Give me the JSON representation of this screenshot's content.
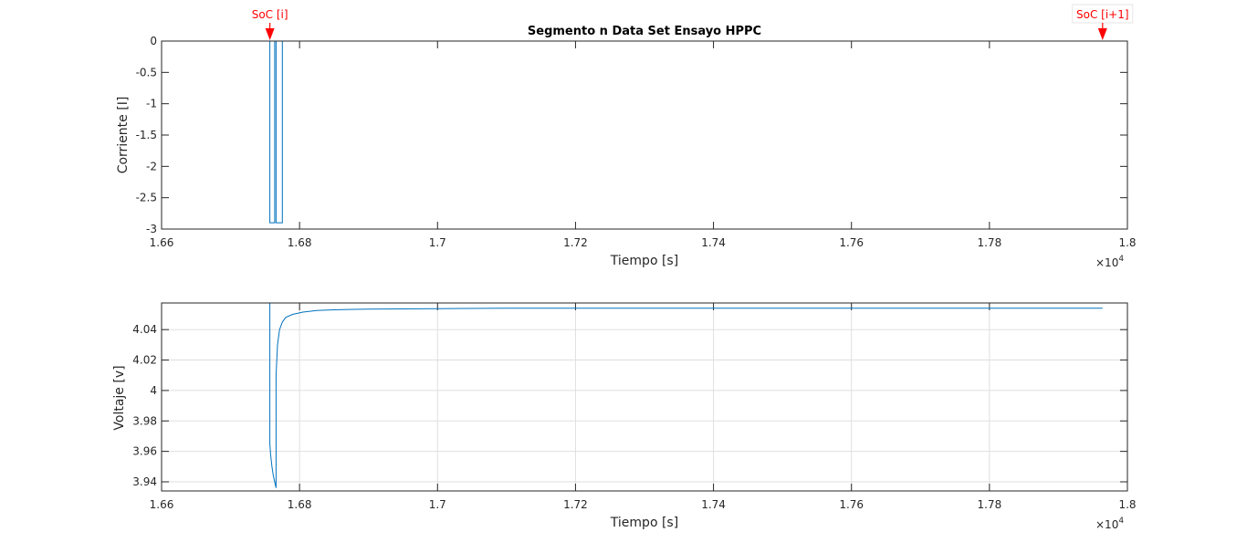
{
  "chart_data": [
    {
      "type": "line",
      "title": "Segmento n Data Set Ensayo HPPC",
      "xlabel": "Tiempo [s]",
      "ylabel": "Corriente [I]",
      "x_multiplier_label": "×10",
      "x_multiplier_exp": "4",
      "xlim": [
        1.66,
        1.8
      ],
      "ylim": [
        -3,
        0
      ],
      "xticks": [
        1.66,
        1.68,
        1.7,
        1.72,
        1.74,
        1.76,
        1.78,
        1.8
      ],
      "xtick_labels": [
        "1.66",
        "1.68",
        "1.7",
        "1.72",
        "1.74",
        "1.76",
        "1.78",
        "1.8"
      ],
      "yticks": [
        0,
        -0.5,
        -1,
        -1.5,
        -2,
        -2.5,
        -3
      ],
      "ytick_labels": [
        "0",
        "-0.5",
        "-1",
        "-1.5",
        "-2",
        "-2.5",
        "-3"
      ],
      "grid": false,
      "line_color": "#0072bd",
      "series": [
        {
          "x": [
            1.6666,
            1.6757,
            1.6757,
            1.6764,
            1.6764,
            1.6766,
            1.6766,
            1.6775,
            1.6775,
            1.7964
          ],
          "y": [
            0,
            0,
            -2.9,
            -2.9,
            0,
            0,
            -2.9,
            -2.9,
            0,
            0
          ]
        }
      ],
      "annotations": [
        {
          "text": "SoC [i]",
          "x": 1.6757,
          "color": "#ff0000"
        },
        {
          "text": "SoC [i+1]",
          "x": 1.7964,
          "color": "#ff0000"
        }
      ]
    },
    {
      "type": "line",
      "title": "",
      "xlabel": "Tiempo [s]",
      "ylabel": "Voltaje [v]",
      "x_multiplier_label": "×10",
      "x_multiplier_exp": "4",
      "xlim": [
        1.66,
        1.8
      ],
      "ylim": [
        3.934,
        4.0575
      ],
      "xticks": [
        1.66,
        1.68,
        1.7,
        1.72,
        1.74,
        1.76,
        1.78,
        1.8
      ],
      "xtick_labels": [
        "1.66",
        "1.68",
        "1.7",
        "1.72",
        "1.74",
        "1.76",
        "1.78",
        "1.8"
      ],
      "yticks": [
        4.04,
        4.02,
        4.0,
        3.98,
        3.96,
        3.94
      ],
      "ytick_labels": [
        "4.04",
        "4.02",
        "4",
        "3.98",
        "3.96",
        "3.94"
      ],
      "grid": true,
      "line_color": "#0072bd",
      "series": [
        {
          "x": [
            1.6666,
            1.6757,
            1.6757,
            1.6758,
            1.676,
            1.6762,
            1.6764,
            1.6766,
            1.6766,
            1.6768,
            1.6771,
            1.6775,
            1.678,
            1.679,
            1.6805,
            1.6825,
            1.685,
            1.69,
            1.7,
            1.71,
            1.73,
            1.75,
            1.77,
            1.7964
          ],
          "y": [
            4.0575,
            4.0575,
            3.965,
            3.958,
            3.95,
            3.944,
            3.94,
            3.936,
            4.01,
            4.03,
            4.04,
            4.045,
            4.048,
            4.05,
            4.0515,
            4.0525,
            4.053,
            4.0535,
            4.0538,
            4.054,
            4.054,
            4.054,
            4.054,
            4.054
          ]
        }
      ]
    }
  ]
}
